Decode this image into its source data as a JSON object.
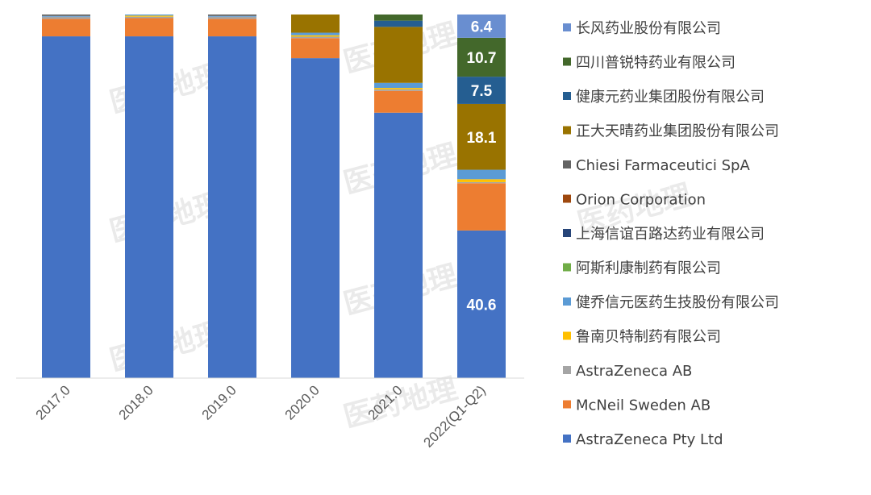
{
  "chart_data": {
    "type": "bar",
    "stacked": true,
    "percent": true,
    "categories": [
      "2017.0",
      "2018.0",
      "2019.0",
      "2020.0",
      "2021.0",
      "2022(Q1-Q2)"
    ],
    "ylim": [
      0,
      100
    ],
    "grid": false,
    "legend_position": "right",
    "series": [
      {
        "name": "AstraZeneca Pty Ltd",
        "color": "#4472C4",
        "values": [
          94.0,
          94.0,
          94.0,
          88.0,
          73.0,
          40.6
        ],
        "labels": [
          "",
          "",
          "",
          "",
          "",
          "40.6"
        ]
      },
      {
        "name": "McNeil Sweden AB",
        "color": "#ED7D31",
        "values": [
          4.8,
          5.0,
          4.8,
          5.5,
          6.0,
          13.0
        ],
        "labels": [
          "",
          "",
          "",
          "",
          "",
          ""
        ]
      },
      {
        "name": "AstraZeneca AB",
        "color": "#A5A5A5",
        "values": [
          0.6,
          0.4,
          0.6,
          0.4,
          0.4,
          0.3
        ],
        "labels": [
          "",
          "",
          "",
          "",
          "",
          ""
        ]
      },
      {
        "name": "鲁南贝特制药有限公司",
        "color": "#FFC000",
        "values": [
          0,
          0.3,
          0,
          0.4,
          0.4,
          0.8
        ],
        "labels": [
          "",
          "",
          "",
          "",
          "",
          ""
        ]
      },
      {
        "name": "健乔信元医药生技股份有限公司",
        "color": "#5B9BD5",
        "values": [
          0.2,
          0.3,
          0.2,
          0.7,
          1.4,
          2.6
        ],
        "labels": [
          "",
          "",
          "",
          "",
          "",
          ""
        ]
      },
      {
        "name": "阿斯利康制药有限公司",
        "color": "#70AD47",
        "values": [
          0,
          0,
          0,
          0,
          0,
          0
        ],
        "labels": [
          "",
          "",
          "",
          "",
          "",
          ""
        ]
      },
      {
        "name": "上海信谊百路达药业有限公司",
        "color": "#264478",
        "values": [
          0,
          0,
          0,
          0,
          0,
          0
        ],
        "labels": [
          "",
          "",
          "",
          "",
          "",
          ""
        ]
      },
      {
        "name": "Orion Corporation",
        "color": "#9E480E",
        "values": [
          0,
          0,
          0,
          0,
          0,
          0
        ],
        "labels": [
          "",
          "",
          "",
          "",
          "",
          ""
        ]
      },
      {
        "name": "Chiesi Farmaceutici SpA",
        "color": "#636363",
        "values": [
          0.4,
          0,
          0.4,
          0,
          0,
          0
        ],
        "labels": [
          "",
          "",
          "",
          "",
          "",
          ""
        ]
      },
      {
        "name": "正大天晴药业集团股份有限公司",
        "color": "#997300",
        "values": [
          0,
          0,
          0,
          5.0,
          15.4,
          18.1
        ],
        "labels": [
          "",
          "",
          "",
          "",
          "",
          "18.1"
        ]
      },
      {
        "name": "健康元药业集团股份有限公司",
        "color": "#255E91",
        "values": [
          0,
          0,
          0,
          0,
          1.7,
          7.5
        ],
        "labels": [
          "",
          "",
          "",
          "",
          "",
          "7.5"
        ]
      },
      {
        "name": "四川普锐特药业有限公司",
        "color": "#43682B",
        "values": [
          0,
          0,
          0,
          0,
          1.7,
          10.7
        ],
        "labels": [
          "",
          "",
          "",
          "",
          "",
          "10.7"
        ]
      },
      {
        "name": "长风药业股份有限公司",
        "color": "#698ED0",
        "values": [
          0,
          0,
          0,
          0,
          0,
          6.4
        ],
        "labels": [
          "",
          "",
          "",
          "",
          "",
          "6.4"
        ]
      }
    ]
  },
  "watermark": {
    "text": "医药地理"
  }
}
